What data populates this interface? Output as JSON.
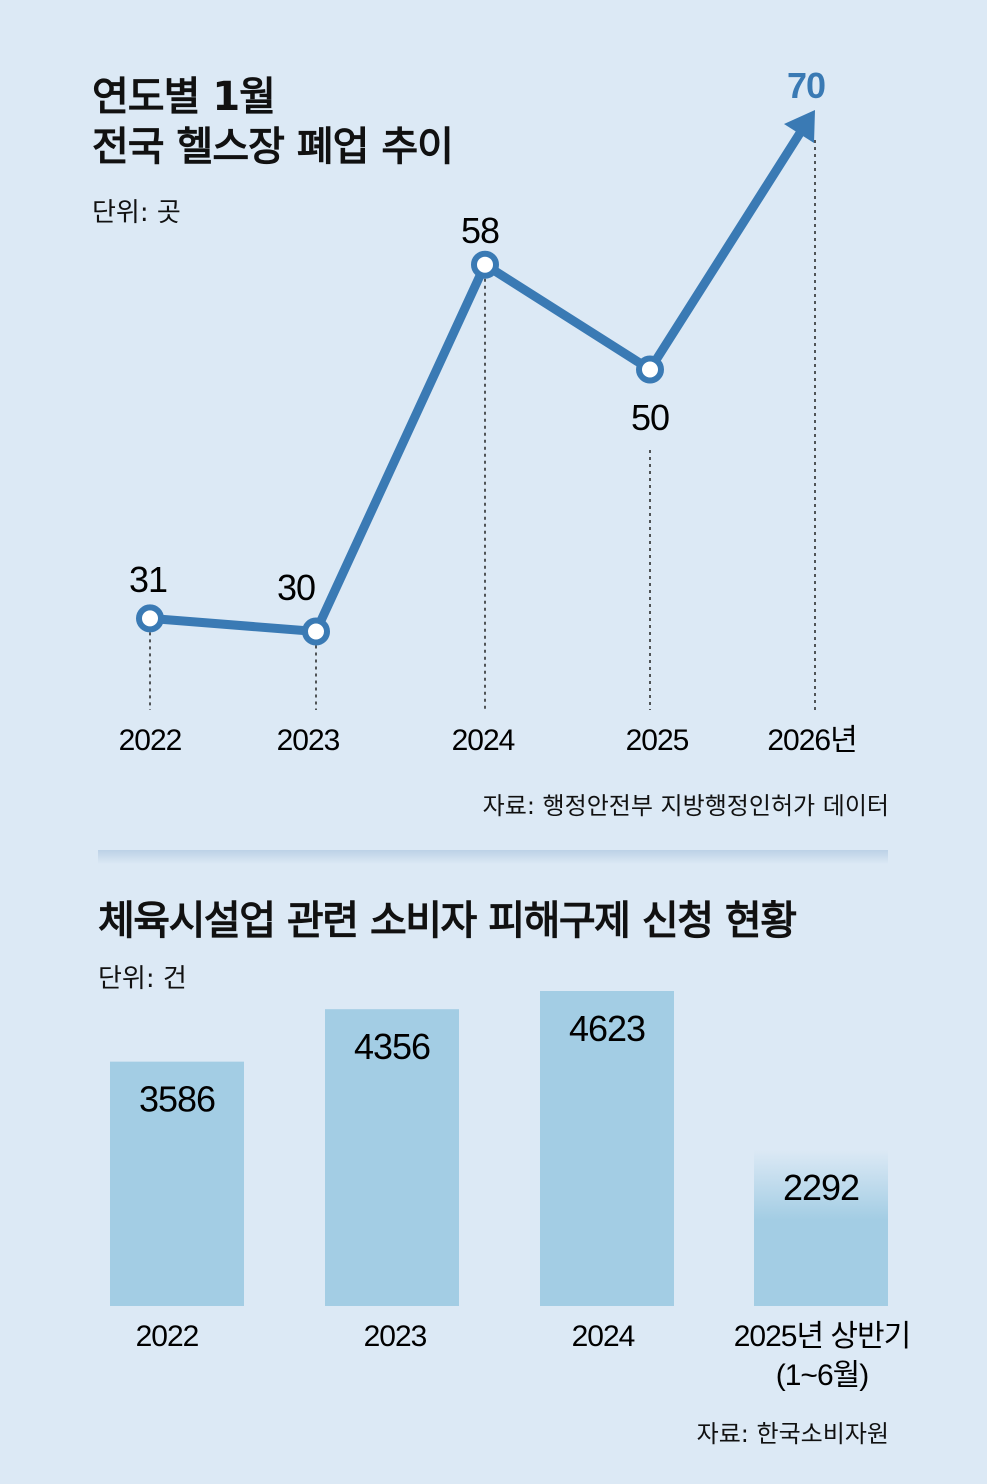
{
  "line_chart": {
    "title_line1": "연도별 1월",
    "title_line2": "전국 헬스장 폐업 추이",
    "unit": "단위: 곳",
    "source": "자료: 행정안전부 지방행정인허가 데이터"
  },
  "bar_chart": {
    "title": "체육시설업 관련 소비자 피해구제 신청 현황",
    "unit": "단위: 건",
    "source": "자료: 한국소비자원"
  },
  "colors": {
    "background": "#dce9f5",
    "line": "#3a7ab4",
    "highlight": "#3a7ab4",
    "bar": "#a3cde4"
  },
  "chart_data": [
    {
      "type": "line",
      "title": "연도별 1월 전국 헬스장 폐업 추이",
      "ylabel": "단위: 곳",
      "x": [
        "2022",
        "2023",
        "2024",
        "2025",
        "2026년"
      ],
      "values": [
        31,
        30,
        58,
        50,
        70
      ],
      "data_labels": [
        "31",
        "30",
        "58",
        "50",
        "70"
      ],
      "ylim": [
        30,
        70
      ],
      "grid": false
    },
    {
      "type": "bar",
      "title": "체육시설업 관련 소비자 피해구제 신청 현황",
      "ylabel": "단위: 건",
      "categories": [
        "2022",
        "2023",
        "2024",
        "2025년 상반기"
      ],
      "category_sublabels": [
        "",
        "",
        "",
        "(1~6월)"
      ],
      "values": [
        3586,
        4356,
        4623,
        2292
      ],
      "data_labels": [
        "3586",
        "4356",
        "4623",
        "2292"
      ],
      "ylim": [
        0,
        4623
      ],
      "grid": false
    }
  ]
}
